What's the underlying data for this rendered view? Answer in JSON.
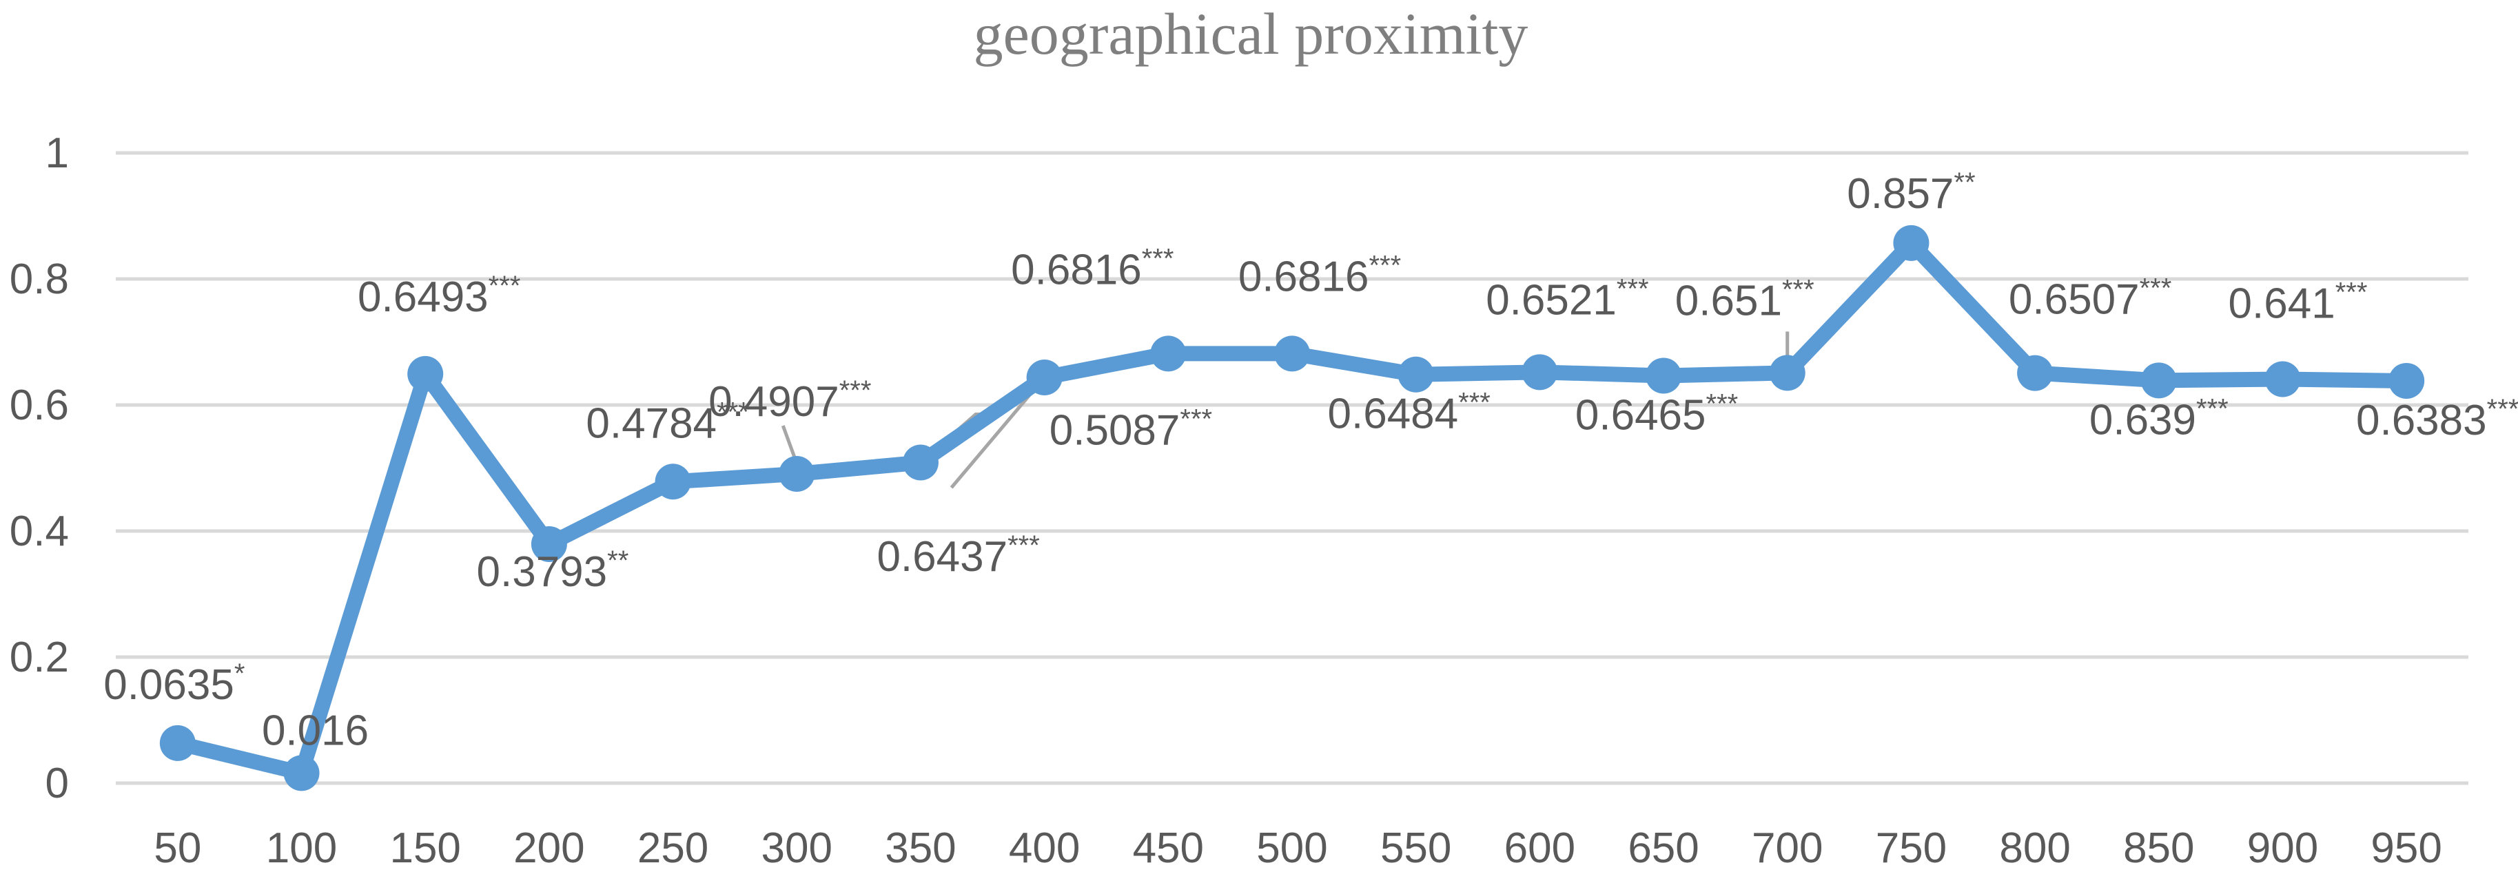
{
  "chart_data": {
    "type": "line",
    "title": "geographical proximity",
    "xlabel": "",
    "ylabel": "",
    "categories": [
      "50",
      "100",
      "150",
      "200",
      "250",
      "300",
      "350",
      "400",
      "450",
      "500",
      "550",
      "600",
      "650",
      "700",
      "750",
      "800",
      "850",
      "900",
      "950"
    ],
    "y_ticks": [
      "0",
      "0.2",
      "0.4",
      "0.6",
      "0.8",
      "1"
    ],
    "ylim": [
      0,
      1
    ],
    "grid": true,
    "legend": "none",
    "series": [
      {
        "color": "#5b9bd5",
        "values": [
          0.0635,
          0.016,
          0.6493,
          0.3793,
          0.4784,
          0.4907,
          0.5087,
          0.6437,
          0.6816,
          0.6816,
          0.6484,
          0.6521,
          0.6465,
          0.651,
          0.857,
          0.6507,
          0.639,
          0.641,
          0.6383
        ],
        "labels": [
          {
            "value": "0.0635",
            "stars": "*"
          },
          {
            "value": "0.016",
            "stars": ""
          },
          {
            "value": "0.6493",
            "stars": "***"
          },
          {
            "value": "0.3793",
            "stars": "**"
          },
          {
            "value": "0.4784",
            "stars": "***"
          },
          {
            "value": "0.4907",
            "stars": "***"
          },
          {
            "value": "0.5087",
            "stars": "***"
          },
          {
            "value": "0.6437",
            "stars": "***"
          },
          {
            "value": "0.6816",
            "stars": "***"
          },
          {
            "value": "0.6816",
            "stars": "***"
          },
          {
            "value": "0.6484",
            "stars": "***"
          },
          {
            "value": "0.6521",
            "stars": "***"
          },
          {
            "value": "0.6465",
            "stars": "***"
          },
          {
            "value": "0.651",
            "stars": "***"
          },
          {
            "value": "0.857",
            "stars": "**"
          },
          {
            "value": "0.6507",
            "stars": "***"
          },
          {
            "value": "0.639",
            "stars": "***"
          },
          {
            "value": "0.641",
            "stars": "***"
          },
          {
            "value": "0.6383",
            "stars": "***"
          }
        ]
      }
    ]
  }
}
